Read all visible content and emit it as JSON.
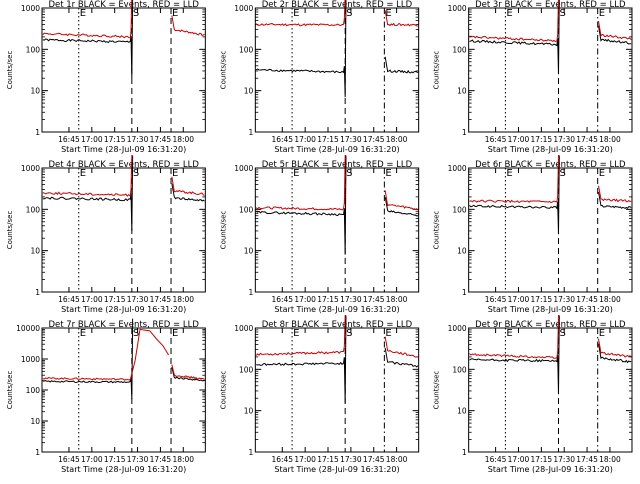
{
  "figure": {
    "x_tick_labels": [
      "16:45",
      "17:00",
      "17:15",
      "17:30",
      "17:45",
      "18:00"
    ],
    "x_axis_label": "Start Time (28-Jul-09 16:31:20)",
    "y_axis_label": "Counts/sec",
    "colors": {
      "events": "#000000",
      "lld": "#cc0000",
      "axes": "#000000",
      "background": "#ffffff"
    }
  },
  "chart_data": [
    {
      "type": "line",
      "title": "Det 1r BLACK = Events, RED = LLD",
      "xlabel": "Start Time (28-Jul-09 16:31:20)",
      "ylabel": "Counts/sec",
      "y_scale": "log",
      "ylim": [
        1,
        1000
      ],
      "y_ticks": [
        "1",
        "10",
        "100",
        "1000"
      ],
      "x_tick_labels": [
        "16:45",
        "17:00",
        "17:15",
        "17:30",
        "17:45",
        "18:00"
      ],
      "markers": [
        {
          "label": "E",
          "style": "dotted"
        },
        {
          "label": "S",
          "style": "dashed"
        },
        {
          "label": "E",
          "style": "dashed"
        }
      ],
      "series": [
        {
          "color": "#000000",
          "level_start": 170,
          "level_end": 150,
          "dropout_min": 20
        },
        {
          "color": "#cc0000",
          "level_start": 240,
          "level_end": 200,
          "after_level_start": 300,
          "after_level_end": 220
        }
      ]
    },
    {
      "type": "line",
      "title": "Det 2r BLACK = Events, RED = LLD",
      "xlabel": "Start Time (28-Jul-09 16:31:20)",
      "ylabel": "Counts/sec",
      "y_scale": "log",
      "ylim": [
        1,
        1000
      ],
      "y_ticks": [
        "1",
        "10",
        "100",
        "1000"
      ],
      "x_tick_labels": [
        "16:45",
        "17:00",
        "17:15",
        "17:30",
        "17:45",
        "18:00"
      ],
      "markers": [
        {
          "label": "E",
          "style": "dotted"
        },
        {
          "label": "S",
          "style": "dashed"
        },
        {
          "label": "E",
          "style": "dash-dot"
        }
      ],
      "series": [
        {
          "color": "#000000",
          "level_start": 32,
          "level_end": 28,
          "dropout_min": 7,
          "after_level_start": 30,
          "after_level_end": 28
        },
        {
          "color": "#cc0000",
          "level_start": 400,
          "level_end": 390,
          "after_level_start": 400,
          "after_level_end": 390
        }
      ]
    },
    {
      "type": "line",
      "title": "Det 3r BLACK = Events, RED = LLD",
      "xlabel": "Start Time (28-Jul-09 16:31:20)",
      "ylabel": "Counts/sec",
      "y_scale": "log",
      "ylim": [
        1,
        1000
      ],
      "y_ticks": [
        "1",
        "10",
        "100",
        "1000"
      ],
      "x_tick_labels": [
        "16:45",
        "17:00",
        "17:15",
        "17:30",
        "17:45",
        "18:00"
      ],
      "markers": [
        {
          "label": "E",
          "style": "dotted"
        },
        {
          "label": "S",
          "style": "dashed"
        },
        {
          "label": "E",
          "style": "dash-dot"
        }
      ],
      "series": [
        {
          "color": "#000000",
          "level_start": 160,
          "level_end": 130,
          "dropout_min": 25,
          "after_level_start": 170,
          "after_level_end": 140
        },
        {
          "color": "#cc0000",
          "level_start": 200,
          "level_end": 160,
          "after_level_start": 220,
          "after_level_end": 180
        }
      ]
    },
    {
      "type": "line",
      "title": "Det 4r BLACK = Events, RED = LLD",
      "xlabel": "Start Time (28-Jul-09 16:31:20)",
      "ylabel": "Counts/sec",
      "y_scale": "log",
      "ylim": [
        1,
        1000
      ],
      "y_ticks": [
        "1",
        "10",
        "100",
        "1000"
      ],
      "x_tick_labels": [
        "16:45",
        "17:00",
        "17:15",
        "17:30",
        "17:45",
        "18:00"
      ],
      "markers": [
        {
          "label": "E",
          "style": "dotted"
        },
        {
          "label": "S",
          "style": "dashed"
        },
        {
          "label": "E",
          "style": "dashed"
        }
      ],
      "series": [
        {
          "color": "#000000",
          "level_start": 190,
          "level_end": 170,
          "dropout_min": 30,
          "after_level_start": 190,
          "after_level_end": 160
        },
        {
          "color": "#cc0000",
          "level_start": 250,
          "level_end": 220,
          "after_level_start": 280,
          "after_level_end": 230
        }
      ]
    },
    {
      "type": "line",
      "title": "Det 5r BLACK = Events, RED = LLD",
      "xlabel": "Start Time (28-Jul-09 16:31:20)",
      "ylabel": "Counts/sec",
      "y_scale": "log",
      "ylim": [
        1,
        1000
      ],
      "y_ticks": [
        "1",
        "10",
        "100",
        "1000"
      ],
      "x_tick_labels": [
        "16:45",
        "17:00",
        "17:15",
        "17:30",
        "17:45",
        "18:00"
      ],
      "markers": [
        {
          "label": "E",
          "style": "dotted"
        },
        {
          "label": "S",
          "style": "dashed"
        },
        {
          "label": "E",
          "style": "dash-dot"
        }
      ],
      "series": [
        {
          "color": "#000000",
          "level_start": 85,
          "level_end": 75,
          "dropout_min": 8,
          "after_level_start": 90,
          "after_level_end": 70
        },
        {
          "color": "#cc0000",
          "level_start": 110,
          "level_end": 100,
          "after_level_start": 130,
          "after_level_end": 100
        }
      ]
    },
    {
      "type": "line",
      "title": "Det 6r BLACK = Events, RED = LLD",
      "xlabel": "Start Time (28-Jul-09 16:31:20)",
      "ylabel": "Counts/sec",
      "y_scale": "log",
      "ylim": [
        1,
        1000
      ],
      "y_ticks": [
        "1",
        "10",
        "100",
        "1000"
      ],
      "x_tick_labels": [
        "16:45",
        "17:00",
        "17:15",
        "17:30",
        "17:45",
        "18:00"
      ],
      "markers": [
        {
          "label": "E",
          "style": "dotted"
        },
        {
          "label": "S",
          "style": "dashed"
        },
        {
          "label": "E",
          "style": "dashed"
        }
      ],
      "series": [
        {
          "color": "#000000",
          "level_start": 120,
          "level_end": 110,
          "dropout_min": 25,
          "after_level_start": 120,
          "after_level_end": 110
        },
        {
          "color": "#cc0000",
          "level_start": 160,
          "level_end": 150,
          "after_level_start": 170,
          "after_level_end": 160
        }
      ]
    },
    {
      "type": "line",
      "title": "Det 7r BLACK = Events, RED = LLD",
      "xlabel": "Start Time (28-Jul-09 16:31:20)",
      "ylabel": "Counts/sec",
      "y_scale": "log",
      "ylim": [
        1,
        10000
      ],
      "y_ticks": [
        "1",
        "10",
        "100",
        "1000",
        "10000"
      ],
      "x_tick_labels": [
        "16:45",
        "17:00",
        "17:15",
        "17:30",
        "17:45",
        "18:00"
      ],
      "markers": [
        {
          "label": "E",
          "style": "dotted"
        },
        {
          "label": "S",
          "style": "dashed"
        },
        {
          "label": "E",
          "style": "dashed"
        }
      ],
      "series": [
        {
          "color": "#000000",
          "level_start": 190,
          "level_end": 180,
          "dropout_min": 50,
          "after_level_start": 250,
          "after_level_end": 200
        },
        {
          "color": "#cc0000",
          "level_start": 240,
          "level_end": 220,
          "peak": 9000,
          "after_level_start": 300,
          "after_level_end": 220
        }
      ]
    },
    {
      "type": "line",
      "title": "Det 8r BLACK = Events, RED = LLD",
      "xlabel": "Start Time (28-Jul-09 16:31:20)",
      "ylabel": "Counts/sec",
      "y_scale": "log",
      "ylim": [
        1,
        1000
      ],
      "y_ticks": [
        "1",
        "10",
        "100",
        "1000"
      ],
      "x_tick_labels": [
        "16:45",
        "17:00",
        "17:15",
        "17:30",
        "17:45",
        "18:00"
      ],
      "markers": [
        {
          "label": "E",
          "style": "dotted"
        },
        {
          "label": "S",
          "style": "dashed"
        },
        {
          "label": "E",
          "style": "dash-dot"
        }
      ],
      "series": [
        {
          "color": "#000000",
          "level_start": 130,
          "level_end": 140,
          "dropout_min": 15,
          "after_level_start": 150,
          "after_level_end": 120
        },
        {
          "color": "#cc0000",
          "level_start": 230,
          "level_end": 260,
          "after_level_start": 280,
          "after_level_end": 200
        }
      ]
    },
    {
      "type": "line",
      "title": "Det 9r BLACK = Events, RED = LLD",
      "xlabel": "Start Time (28-Jul-09 16:31:20)",
      "ylabel": "Counts/sec",
      "y_scale": "log",
      "ylim": [
        1,
        1000
      ],
      "y_ticks": [
        "1",
        "10",
        "100",
        "1000"
      ],
      "x_tick_labels": [
        "16:45",
        "17:00",
        "17:15",
        "17:30",
        "17:45",
        "18:00"
      ],
      "markers": [
        {
          "label": "E",
          "style": "dotted"
        },
        {
          "label": "S",
          "style": "dashed"
        },
        {
          "label": "E",
          "style": "dash-dot"
        }
      ],
      "series": [
        {
          "color": "#000000",
          "level_start": 170,
          "level_end": 160,
          "dropout_min": 25,
          "after_level_start": 190,
          "after_level_end": 150
        },
        {
          "color": "#cc0000",
          "level_start": 230,
          "level_end": 190,
          "after_level_start": 250,
          "after_level_end": 200
        }
      ]
    }
  ]
}
